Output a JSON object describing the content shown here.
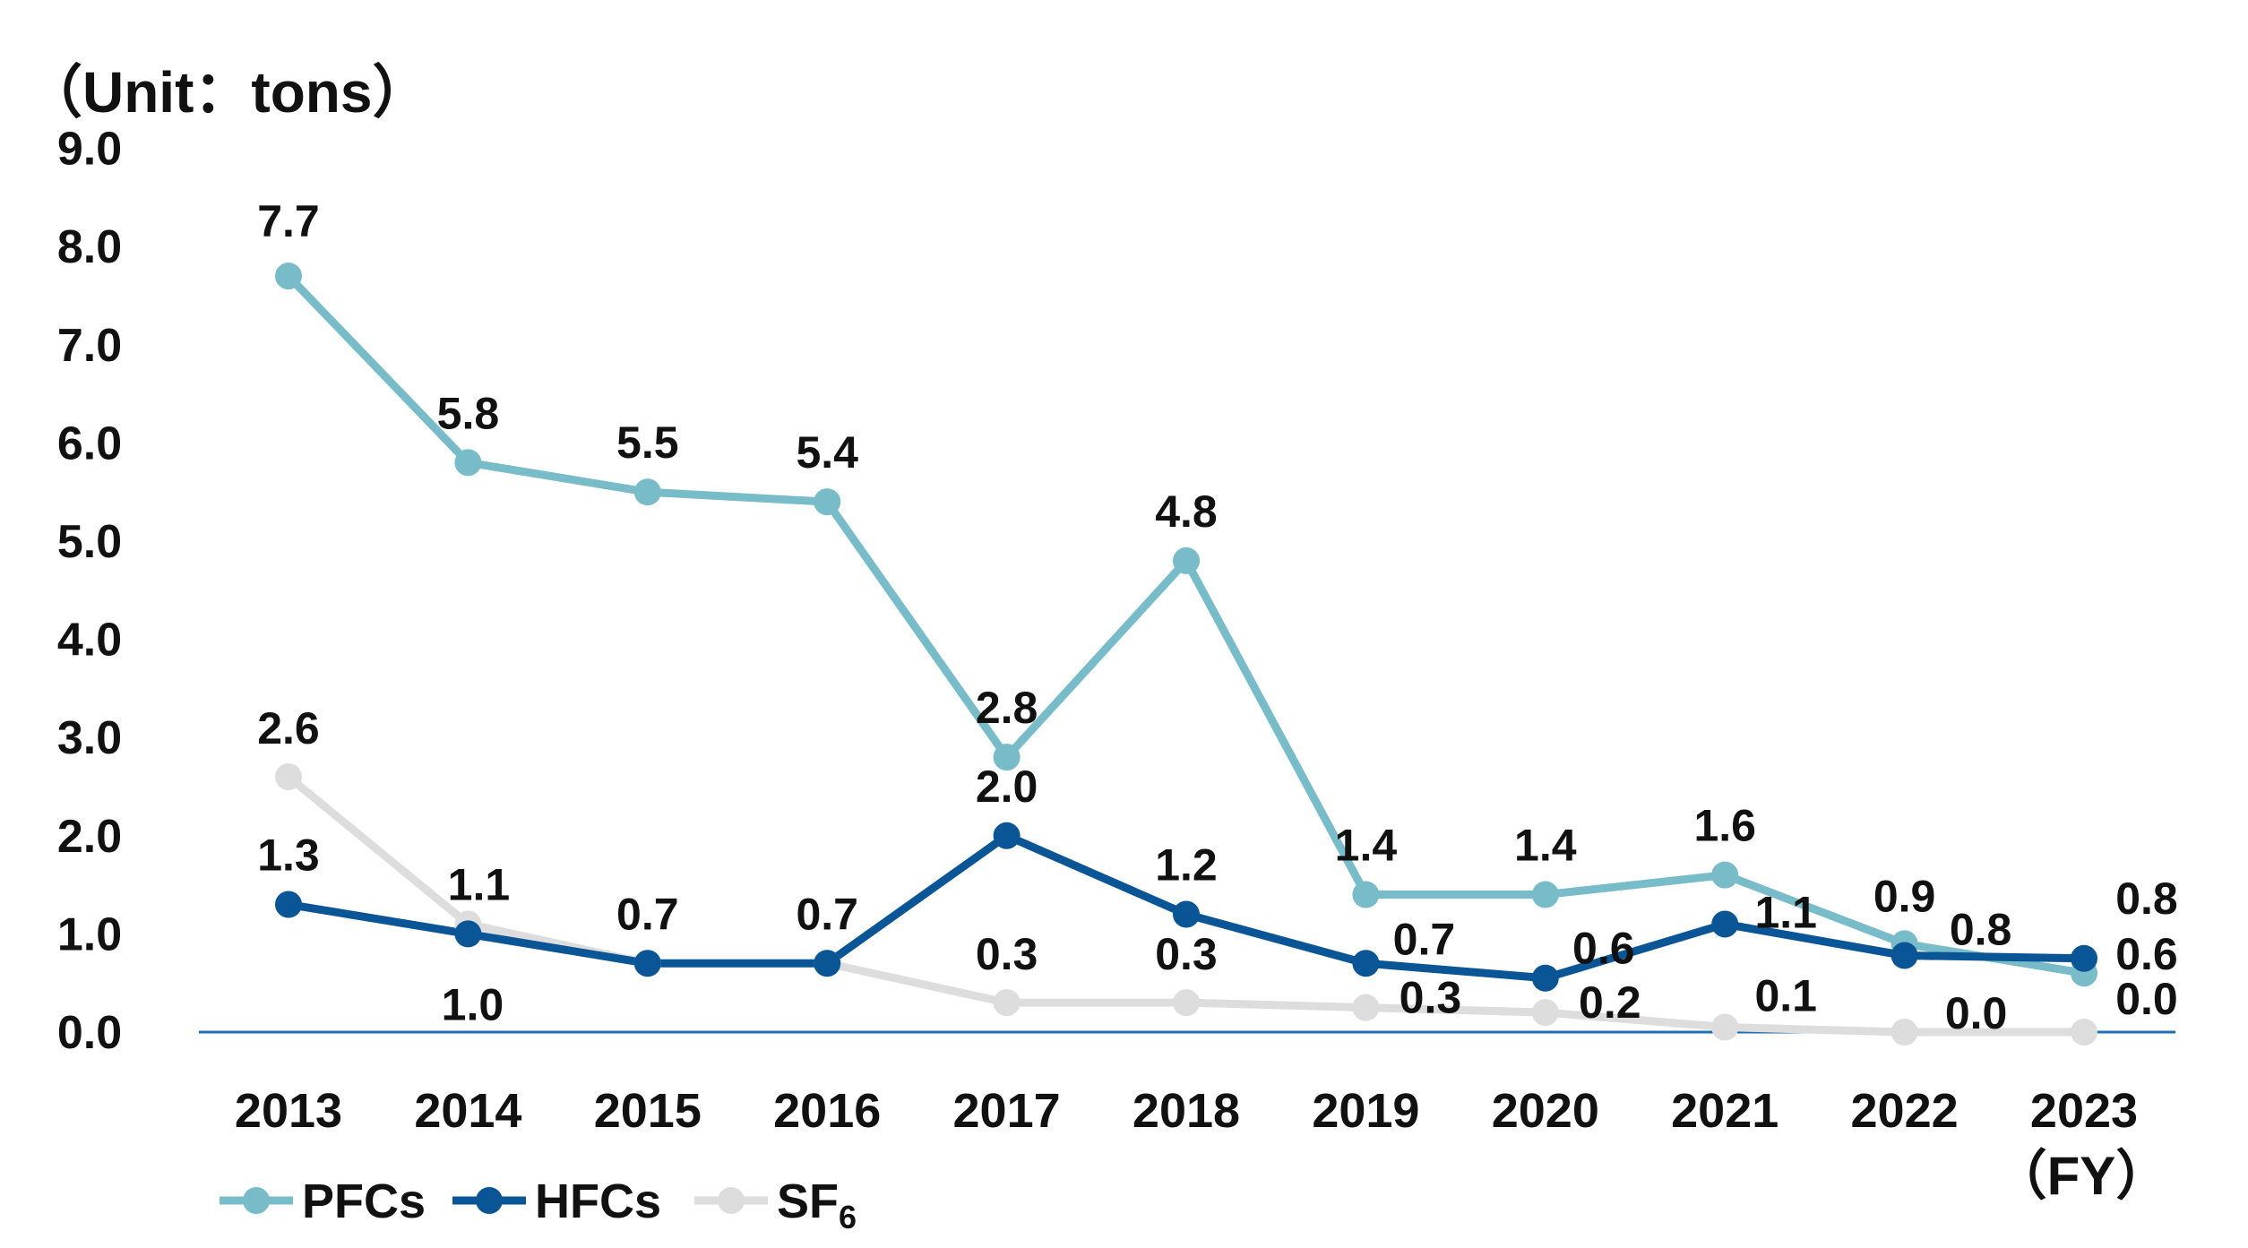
{
  "chart_data": {
    "type": "line",
    "unit_label": "（Unit：tons）",
    "xlabel": "（FY）",
    "ylabel": "",
    "title": "",
    "categories": [
      "2013",
      "2014",
      "2015",
      "2016",
      "2017",
      "2018",
      "2019",
      "2020",
      "2021",
      "2022",
      "2023"
    ],
    "ylim": [
      0,
      9
    ],
    "yticks": [
      "0.0",
      "1.0",
      "2.0",
      "3.0",
      "4.0",
      "5.0",
      "6.0",
      "7.0",
      "8.0",
      "9.0"
    ],
    "grid": false,
    "legend_position": "bottom-left",
    "series": [
      {
        "name": "PFCs",
        "color": "#77bcc8",
        "values": [
          7.7,
          5.8,
          5.5,
          5.4,
          2.8,
          4.8,
          1.4,
          1.4,
          1.6,
          0.9,
          0.6
        ],
        "labels": [
          "7.7",
          "5.8",
          "5.5",
          "5.4",
          "2.8",
          "4.8",
          "1.4",
          "1.4",
          "1.6",
          "0.9",
          "0.6"
        ]
      },
      {
        "name": "HFCs",
        "color": "#0a5596",
        "values": [
          1.3,
          1.0,
          0.7,
          0.7,
          2.0,
          1.2,
          0.7,
          0.55,
          1.1,
          0.78,
          0.75
        ],
        "labels": [
          "1.3",
          "1.0",
          "0.7",
          "0.7",
          "2.0",
          "1.2",
          "0.7",
          "0.6",
          "1.1",
          "0.8",
          "0.8"
        ]
      },
      {
        "name": "SF",
        "name_sub": "6",
        "color": "#dddddd",
        "values": [
          2.6,
          1.1,
          0.7,
          0.7,
          0.3,
          0.3,
          0.25,
          0.2,
          0.05,
          0.0,
          0.0
        ],
        "labels": [
          "2.6",
          "1.1",
          "",
          "",
          "0.3",
          "0.3",
          "0.3",
          "0.2",
          "0.1",
          "0.0",
          "0.0"
        ]
      }
    ]
  }
}
